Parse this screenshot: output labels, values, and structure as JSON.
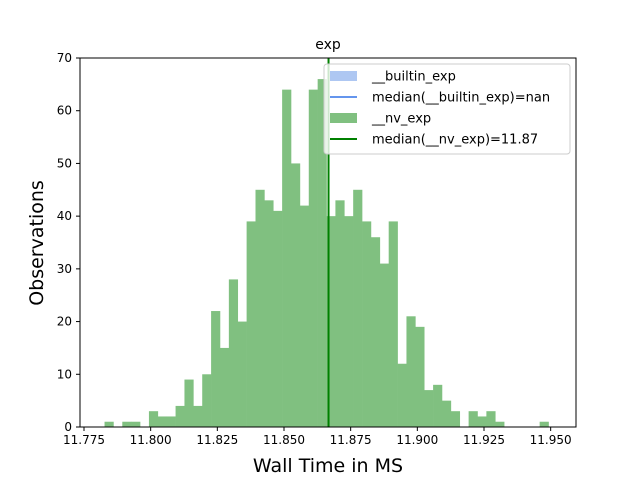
{
  "chart_data": {
    "type": "bar",
    "title": "exp",
    "xlabel": "Wall Time in MS",
    "ylabel": "Observations",
    "xlim": [
      11.7735,
      11.9595
    ],
    "ylim": [
      0,
      70
    ],
    "xticks": [
      {
        "value": 11.775,
        "label": "11.775"
      },
      {
        "value": 11.8,
        "label": "11.800"
      },
      {
        "value": 11.825,
        "label": "11.825"
      },
      {
        "value": 11.85,
        "label": "11.850"
      },
      {
        "value": 11.875,
        "label": "11.875"
      },
      {
        "value": 11.9,
        "label": "11.900"
      },
      {
        "value": 11.925,
        "label": "11.925"
      },
      {
        "value": 11.95,
        "label": "11.950"
      }
    ],
    "yticks": [
      {
        "value": 0,
        "label": "0"
      },
      {
        "value": 10,
        "label": "10"
      },
      {
        "value": 20,
        "label": "20"
      },
      {
        "value": 30,
        "label": "30"
      },
      {
        "value": 40,
        "label": "40"
      },
      {
        "value": 50,
        "label": "50"
      },
      {
        "value": 60,
        "label": "60"
      },
      {
        "value": 70,
        "label": "70"
      }
    ],
    "grid": false,
    "legend_position": "top-right",
    "legend": [
      {
        "label": "__builtin_exp",
        "kind": "patch",
        "color": "#aec7f2"
      },
      {
        "label": "median(__builtin_exp)=nan",
        "kind": "line",
        "color": "#6495ed"
      },
      {
        "label": "__nv_exp",
        "kind": "patch",
        "color": "#80c080"
      },
      {
        "label": "median(__nv_exp)=11.87",
        "kind": "line",
        "color": "#008000"
      }
    ],
    "series": [
      {
        "name": "__nv_exp",
        "color": "#80c080",
        "bin_start": 11.7827,
        "bin_width": 0.00333,
        "counts": [
          1,
          0,
          1,
          1,
          0,
          3,
          2,
          2,
          4,
          9,
          4,
          10,
          22,
          15,
          28,
          20,
          39,
          45,
          43,
          41,
          64,
          50,
          42,
          64,
          66,
          40,
          43,
          40,
          45,
          39,
          36,
          31,
          39,
          12,
          21,
          19,
          7,
          8,
          5,
          3,
          0,
          3,
          2,
          3,
          1,
          0,
          0,
          0,
          0,
          1
        ]
      }
    ],
    "median_lines": [
      {
        "name": "median(__nv_exp)=11.87",
        "x": 11.8667,
        "color": "#008000"
      }
    ]
  }
}
